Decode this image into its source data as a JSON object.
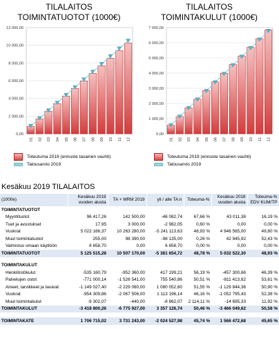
{
  "charts": [
    {
      "title": [
        "TILALAITOS",
        "TOIMINTATUOTOT (1000€)"
      ],
      "yticks": [
        "12 000,00",
        "10 000,00",
        "8 000,00",
        "6 000,00",
        "4 000,00",
        "2 000,00",
        "0,00"
      ],
      "legend": [
        "Toteutuma 2019 (ennuste tasainen vauhti)",
        "Talousarvio 2019"
      ]
    },
    {
      "title": [
        "TILALAITOS",
        "TOIMINTAKULUT (1000€)"
      ],
      "yticks": [
        "7 000,00",
        "6 000,00",
        "5 000,00",
        "4 000,00",
        "3 000,00",
        "2 000,00",
        "1 000,00",
        "0,00"
      ],
      "legend": [
        "Toteutuma 2019 (ennuste tasainen vauhti)",
        "Talousarvio 2019"
      ]
    }
  ],
  "chart_data": [
    {
      "type": "bar",
      "categories": [
        "01",
        "02",
        "03",
        "04",
        "05",
        "06",
        "07",
        "08",
        "09",
        "10",
        "11",
        "12"
      ],
      "series": [
        {
          "name": "Toteutuma 2019 (ennuste tasainen vauhti)",
          "values": [
            850,
            1700,
            2560,
            3420,
            4270,
            5130,
            5980,
            6830,
            7690,
            8540,
            9400,
            10250
          ]
        },
        {
          "name": "Talousarvio 2019",
          "values": [
            880,
            1750,
            2630,
            3500,
            4380,
            5250,
            6130,
            7000,
            7880,
            8760,
            9630,
            10510
          ]
        }
      ],
      "ylim": [
        0,
        12000
      ]
    },
    {
      "type": "bar",
      "categories": [
        "01",
        "02",
        "03",
        "04",
        "05",
        "06",
        "07",
        "08",
        "09",
        "10",
        "11",
        "12"
      ],
      "series": [
        {
          "name": "Toteutuma 2019 (ennuste tasainen vauhti)",
          "values": [
            570,
            1140,
            1710,
            2280,
            2850,
            3420,
            3990,
            4560,
            5130,
            5700,
            6270,
            6840
          ]
        },
        {
          "name": "Talousarvio 2019",
          "values": [
            565,
            1130,
            1690,
            2260,
            2820,
            3390,
            3950,
            4520,
            5080,
            5650,
            6210,
            6780
          ]
        }
      ],
      "ylim": [
        0,
        7000
      ]
    }
  ],
  "table": {
    "title": "Kesäkuu 2019 TILALAITOS",
    "headers": [
      "(1000e)",
      "Kesäkuu 2019\nvuoden alusta",
      "TA + MRM 2019",
      "yli / alle TA:n",
      "Toteuma-%",
      "Kesäkuu 2018\nvuoden alusta",
      "Toteuma-%\nEDV KUM/TP"
    ],
    "rows": [
      {
        "kind": "bold",
        "cells": [
          "TOIMINTATUOTOT",
          "",
          "",
          "",
          "",
          "",
          ""
        ]
      },
      {
        "kind": "ind",
        "cells": [
          "Myyntituotot",
          "96 417,26",
          "142 500,00",
          "-46 082,74",
          "67,66 %",
          "43 011,38",
          "16,19 %"
        ]
      },
      {
        "kind": "ind",
        "cells": [
          "Tuet ja avustukset",
          "17,95",
          "3 000,00",
          "-2 982,05",
          "0,60 %",
          "0,00",
          "0,00 %"
        ]
      },
      {
        "kind": "ind",
        "cells": [
          "Vuokrat",
          "5 022 166,37",
          "10 263 280,00",
          "-5 241 113,63",
          "48,93 %",
          "4 946 565,00",
          "49,80 %"
        ]
      },
      {
        "kind": "ind",
        "cells": [
          "Muut toimintatuotot",
          "255,00",
          "98 390,00",
          "-98 135,00",
          "0,26 %",
          "42 945,92",
          "52,43 %"
        ]
      },
      {
        "kind": "ind",
        "cells": [
          "Valmistus omaan käyttöön",
          "6 658,70",
          "0,00",
          "6 658,70",
          "0,00 %",
          "0,00",
          "0,00 %"
        ]
      },
      {
        "kind": "sum",
        "cells": [
          "TOIMINTATUOTOT",
          "5 125 515,28",
          "10 507 170,00",
          "-5 381 654,72",
          "48,78 %",
          "5 032 522,30",
          "48,93 %"
        ]
      },
      {
        "kind": "spacer",
        "cells": [
          "",
          "",
          "",
          "",
          "",
          "",
          ""
        ]
      },
      {
        "kind": "bold",
        "cells": [
          "TOIMINTAKULUT",
          "",
          "",
          "",
          "",
          "",
          ""
        ]
      },
      {
        "kind": "ind",
        "cells": [
          "Henkilöstökulut",
          "-535 160,79",
          "-952 360,00",
          "417 199,21",
          "56,19 %",
          "-457 300,66",
          "46,39 %"
        ]
      },
      {
        "kind": "ind",
        "cells": [
          "Palvelujen ostot",
          "-771 000,14",
          "-1 526 541,00",
          "755 540,86",
          "50,51 %",
          "-811 413,82",
          "53,61 %"
        ]
      },
      {
        "kind": "ind",
        "cells": [
          "Aineet, tarvikkeet ja tavarat",
          "-1 149 027,40",
          "-2 229 080,00",
          "1 080 052,60",
          "51,55 %",
          "-1 129 844,38",
          "50,90 %"
        ]
      },
      {
        "kind": "ind",
        "cells": [
          "Vuokrat",
          "-954 309,86",
          "-2 067 506,00",
          "1 113 196,14",
          "46,16 %",
          "-1 052 795,43",
          "52,38 %"
        ]
      },
      {
        "kind": "ind",
        "cells": [
          "Muut toimintakulut",
          "-9 302,07",
          "-440,00",
          "-8 862,07",
          "2 114,11 %",
          "-14 695,33",
          "11,92 %"
        ]
      },
      {
        "kind": "sum",
        "cells": [
          "TOIMINTAKULUT",
          "-3 418 800,26",
          "-6 775 927,00",
          "3 357 126,74",
          "50,46 %",
          "-3 466 049,62",
          "50,58 %"
        ]
      },
      {
        "kind": "spacer",
        "cells": [
          "",
          "",
          "",
          "",
          "",
          "",
          ""
        ]
      },
      {
        "kind": "sum",
        "cells": [
          "TOIMINTAKATE",
          "1 706 715,02",
          "3 731 243,00",
          "-2 024 527,98",
          "45,74 %",
          "1 566 472,68",
          "45,65 %"
        ]
      }
    ]
  }
}
